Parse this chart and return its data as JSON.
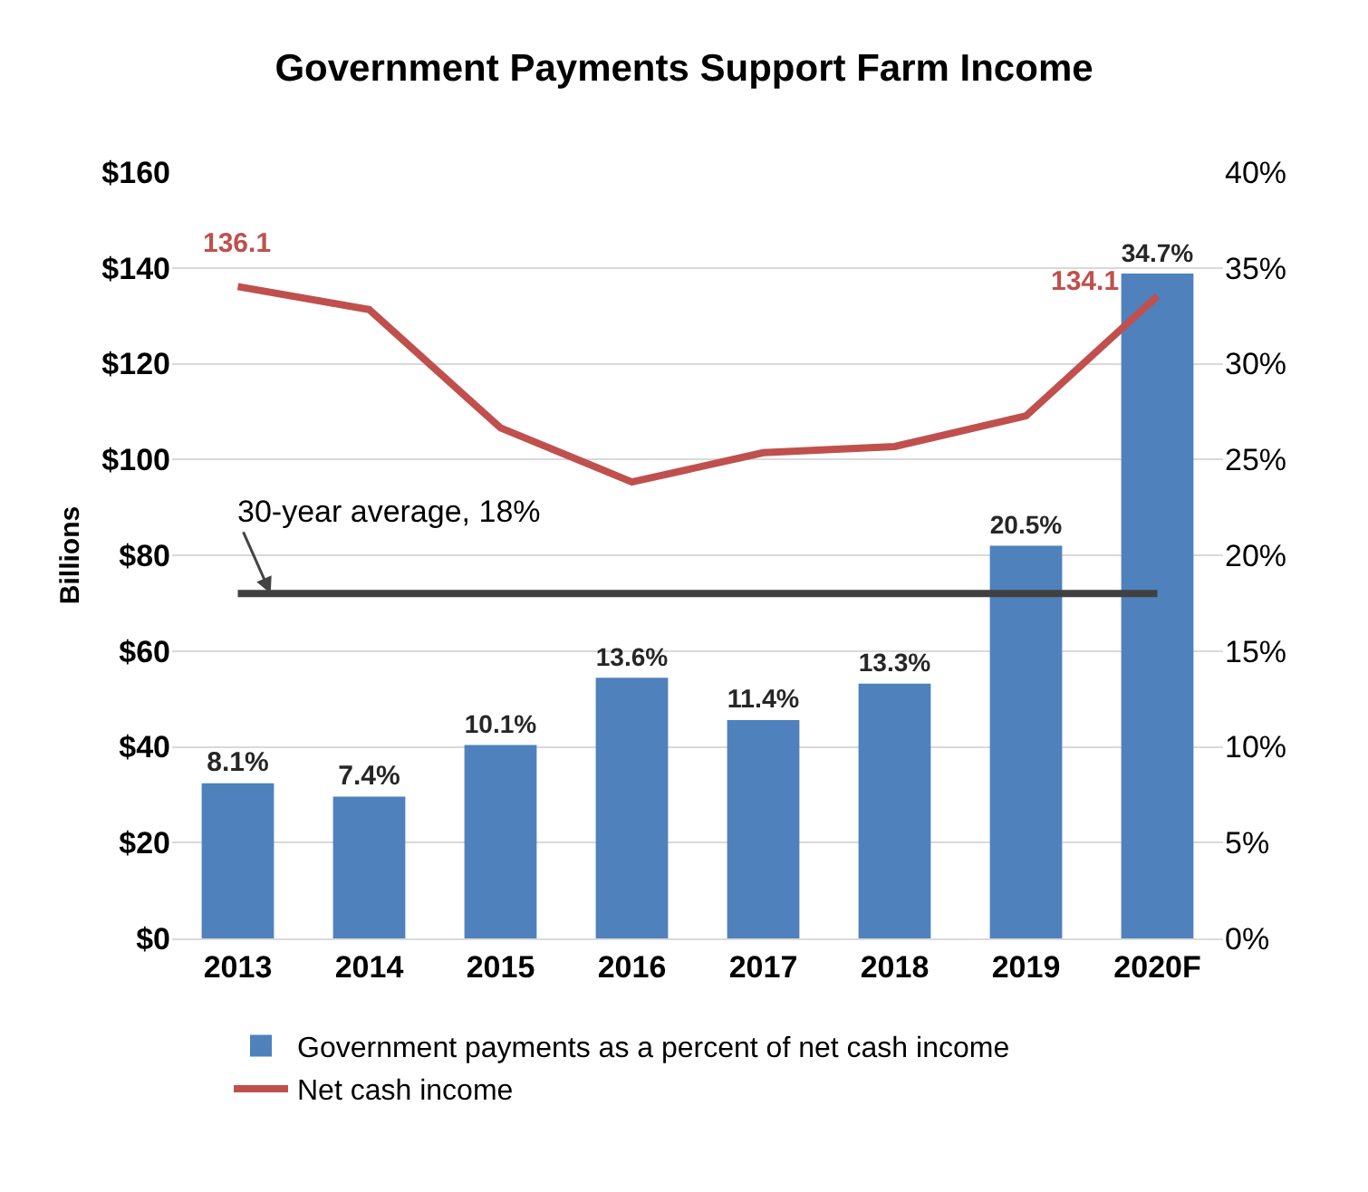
{
  "chart_data": {
    "type": "bar",
    "title": "Government Payments Support Farm Income",
    "categories": [
      "2013",
      "2014",
      "2015",
      "2016",
      "2017",
      "2018",
      "2019",
      "2020F"
    ],
    "series": [
      {
        "name": "Government payments as a percent of net cash income",
        "axis": "y2",
        "color": "#4f81bd",
        "values": [
          8.1,
          7.4,
          10.1,
          13.6,
          11.4,
          13.3,
          20.5,
          34.7
        ],
        "value_labels": [
          "8.1%",
          "7.4%",
          "10.1%",
          "13.6%",
          "11.4%",
          "13.3%",
          "20.5%",
          "34.7%"
        ]
      },
      {
        "name": "Net cash income",
        "type": "line",
        "axis": "y",
        "color": "#c0504d",
        "values": [
          136.1,
          131.3,
          106.6,
          95.3,
          101.4,
          102.7,
          109.1,
          134.1
        ],
        "value_labels": [
          "136.1",
          null,
          null,
          null,
          null,
          null,
          null,
          "134.1"
        ]
      }
    ],
    "ylabel": "Billions",
    "ylim": [
      0,
      160
    ],
    "yticks": [
      {
        "value": 0,
        "label": "$0"
      },
      {
        "value": 20,
        "label": "$20"
      },
      {
        "value": 40,
        "label": "$40"
      },
      {
        "value": 60,
        "label": "$60"
      },
      {
        "value": 80,
        "label": "$80"
      },
      {
        "value": 100,
        "label": "$100"
      },
      {
        "value": 120,
        "label": "$120"
      },
      {
        "value": 140,
        "label": "$140"
      },
      {
        "value": 160,
        "label": "$160"
      }
    ],
    "y2lim": [
      0,
      40
    ],
    "y2ticks": [
      {
        "value": 0,
        "label": "0%"
      },
      {
        "value": 5,
        "label": "5%"
      },
      {
        "value": 10,
        "label": "10%"
      },
      {
        "value": 15,
        "label": "15%"
      },
      {
        "value": 20,
        "label": "20%"
      },
      {
        "value": 25,
        "label": "25%"
      },
      {
        "value": 30,
        "label": "30%"
      },
      {
        "value": 35,
        "label": "35%"
      },
      {
        "value": 40,
        "label": "40%"
      }
    ],
    "ref_lines": [
      {
        "axis": "y2",
        "value": 18,
        "label": "30-year average, 18%",
        "color": "#404040"
      }
    ],
    "grid": "y",
    "legend": "bottom"
  }
}
